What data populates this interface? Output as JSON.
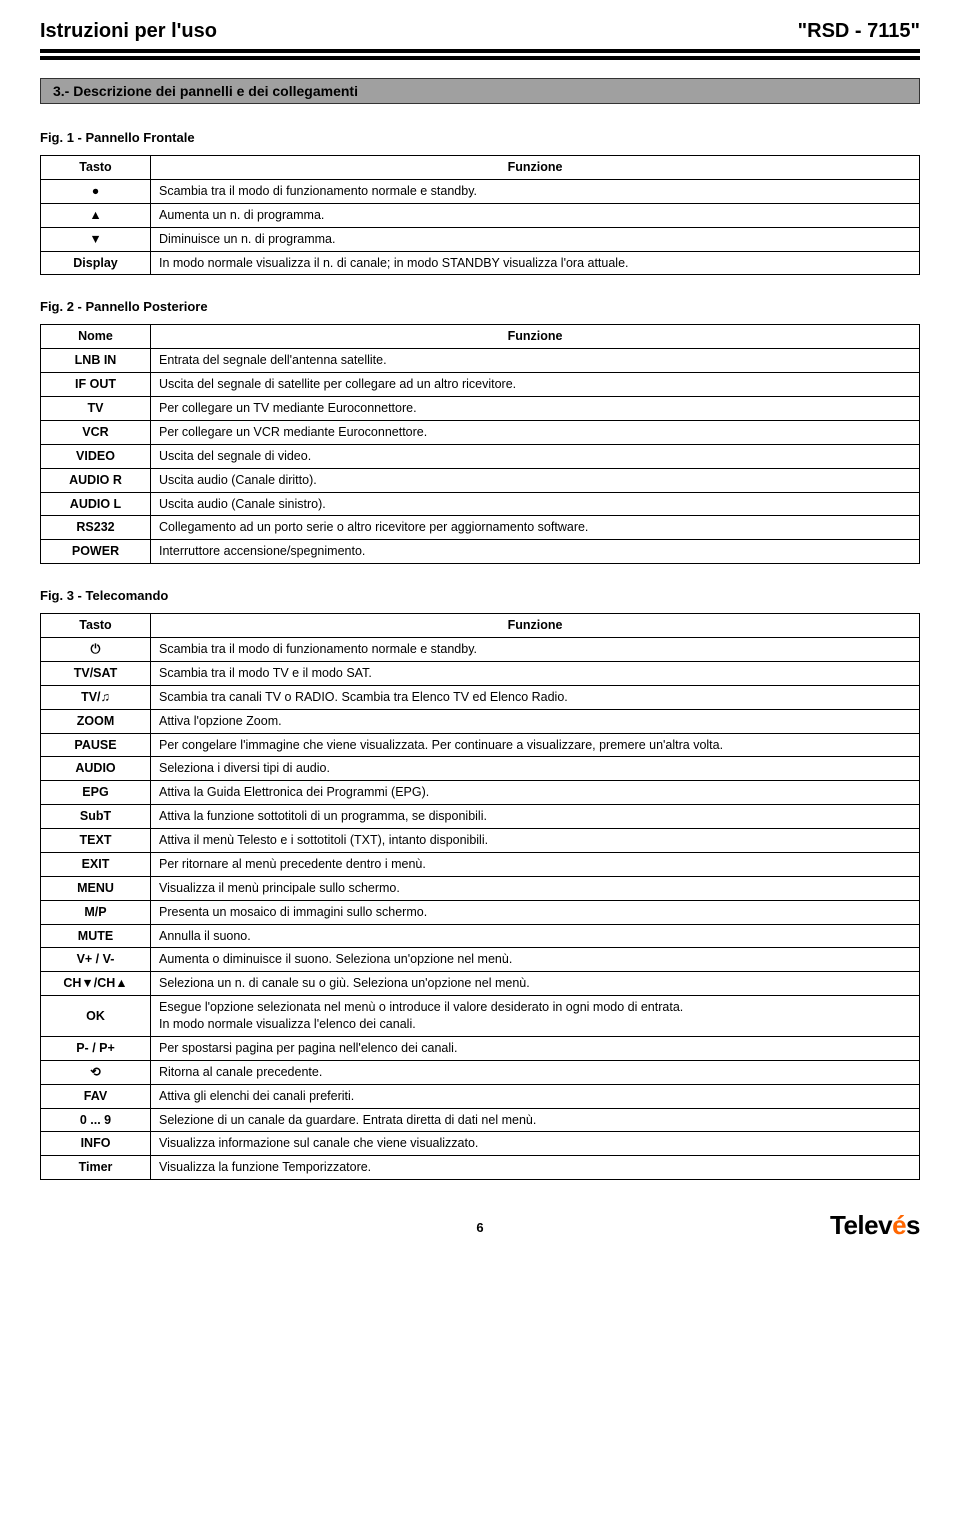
{
  "header": {
    "left": "Istruzioni per l'uso",
    "right": "\"RSD - 7115\""
  },
  "section_title": "3.- Descrizione dei pannelli e dei collegamenti",
  "fig1": {
    "label": "Fig. 1   -   Pannello Frontale",
    "col1": "Tasto",
    "col2": "Funzione",
    "rows": [
      {
        "k": "●",
        "v": "Scambia tra il modo di funzionamento normale e standby."
      },
      {
        "k": "▲",
        "v": "Aumenta un n. di programma."
      },
      {
        "k": "▼",
        "v": "Diminuisce un n. di programma."
      },
      {
        "k": "Display",
        "v": "In modo normale visualizza il n. di canale; in modo STANDBY visualizza l'ora attuale."
      }
    ]
  },
  "fig2": {
    "label": "Fig. 2   -   Pannello Posteriore",
    "col1": "Nome",
    "col2": "Funzione",
    "rows": [
      {
        "k": "LNB IN",
        "v": "Entrata del segnale dell'antenna satellite."
      },
      {
        "k": "IF OUT",
        "v": "Uscita del segnale di satellite per collegare ad un altro ricevitore."
      },
      {
        "k": "TV",
        "v": "Per collegare un TV mediante Euroconnettore."
      },
      {
        "k": "VCR",
        "v": "Per collegare un VCR mediante Euroconnettore."
      },
      {
        "k": "VIDEO",
        "v": "Uscita del segnale di video."
      },
      {
        "k": "AUDIO R",
        "v": "Uscita audio (Canale diritto)."
      },
      {
        "k": "AUDIO L",
        "v": "Uscita audio (Canale sinistro)."
      },
      {
        "k": "RS232",
        "v": "Collegamento ad un porto serie o altro ricevitore per aggiornamento software."
      },
      {
        "k": "POWER",
        "v": "Interruttore accensione/spegnimento."
      }
    ]
  },
  "fig3": {
    "label": "Fig. 3   -   Telecomando",
    "col1": "Tasto",
    "col2": "Funzione",
    "rows": [
      {
        "k": "⏻",
        "v": "Scambia tra il modo di funzionamento normale e standby."
      },
      {
        "k": "TV/SAT",
        "v": "Scambia tra il modo TV e il modo SAT."
      },
      {
        "k": "TV/♫",
        "v": "Scambia tra canali TV o RADIO. Scambia tra  Elenco TV ed Elenco Radio."
      },
      {
        "k": "ZOOM",
        "v": "Attiva l'opzione Zoom."
      },
      {
        "k": "PAUSE",
        "v": "Per congelare l'immagine che viene visualizzata. Per continuare a visualizzare, premere un'altra volta."
      },
      {
        "k": "AUDIO",
        "v": "Seleziona i diversi tipi di audio."
      },
      {
        "k": "EPG",
        "v": "Attiva la Guida Elettronica dei Programmi (EPG)."
      },
      {
        "k": "SubT",
        "v": "Attiva la funzione sottotitoli di un programma, se disponibili."
      },
      {
        "k": "TEXT",
        "v": "Attiva il menù Telesto e i sottotitoli (TXT), intanto disponibili."
      },
      {
        "k": "EXIT",
        "v": "Per ritornare al menù precedente dentro i menù."
      },
      {
        "k": "MENU",
        "v": "Visualizza il menù principale sullo schermo."
      },
      {
        "k": "M/P",
        "v": "Presenta un mosaico di immagini sullo schermo."
      },
      {
        "k": "MUTE",
        "v": "Annulla il suono."
      },
      {
        "k": "V+ / V-",
        "v": "Aumenta o diminuisce il suono. Seleziona un'opzione nel menù."
      },
      {
        "k": "CH▼/CH▲",
        "v": "Seleziona un n. di canale su o giù. Seleziona un'opzione nel menù."
      },
      {
        "k": "OK",
        "v": "Esegue l'opzione selezionata nel menù o introduce il valore desiderato in ogni modo di entrata.\nIn modo normale visualizza l'elenco dei canali."
      },
      {
        "k": "P- / P+",
        "v": "Per spostarsi pagina per pagina nell'elenco dei canali."
      },
      {
        "k": "⟲",
        "v": "Ritorna al canale precedente."
      },
      {
        "k": "FAV",
        "v": "Attiva gli elenchi dei canali preferiti."
      },
      {
        "k": "0 ... 9",
        "v": "Selezione di un canale da guardare. Entrata diretta di dati nel menù."
      },
      {
        "k": "INFO",
        "v": "Visualizza informazione sul canale che viene visualizzato."
      },
      {
        "k": "Timer",
        "v": "Visualizza la funzione Temporizzatore."
      }
    ]
  },
  "footer": {
    "page": "6",
    "logo_main": "Telev",
    "logo_accent": "é",
    "logo_end": "s"
  }
}
